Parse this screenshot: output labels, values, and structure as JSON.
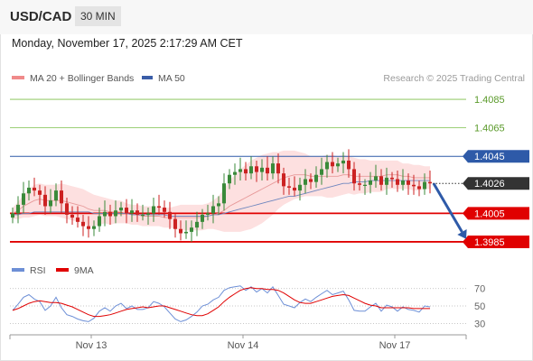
{
  "header": {
    "symbol": "USD/CAD",
    "timeframe": "30 MIN"
  },
  "datetime": "Monday, November 17, 2025 2:17:29 AM CET",
  "legend": {
    "price": [
      {
        "label": "MA 20 + Bollinger Bands",
        "color": "#f08a8a"
      },
      {
        "label": "MA 50",
        "color": "#3b5ea8"
      }
    ],
    "rsi": [
      {
        "label": "RSI",
        "color": "#6d8fd6"
      },
      {
        "label": "9MA",
        "color": "#e00000"
      }
    ]
  },
  "credit": "Research © 2025 Trading Central",
  "colors": {
    "up_candle": "#3a8a3a",
    "down_candle": "#cc2222",
    "band_fill": "#fde0e0",
    "resistance_green": "#7cbf4a",
    "pivot_blue": "#2e5aa8",
    "support_red": "#e00000",
    "arrow": "#2e5aa8",
    "price_tag": "#333333"
  },
  "chart_data": [
    {
      "type": "candlestick",
      "ylim": [
        1.3978,
        1.4092
      ],
      "levels": [
        {
          "value": 1.4085,
          "label": "1.4085",
          "kind": "resistance"
        },
        {
          "value": 1.4065,
          "label": "1.4065",
          "kind": "resistance"
        },
        {
          "value": 1.4045,
          "label": "1.4045",
          "kind": "pivot"
        },
        {
          "value": 1.4005,
          "label": "1.4005",
          "kind": "support"
        },
        {
          "value": 1.3985,
          "label": "1.3985",
          "kind": "support"
        }
      ],
      "last_price": {
        "value": 1.4026,
        "label": "1.4026"
      },
      "x_ticks": [
        {
          "index": 17,
          "label": "Nov 13"
        },
        {
          "index": 45,
          "label": "Nov 14"
        },
        {
          "index": 73,
          "label": "Nov 17"
        }
      ],
      "close": [
        1.4005,
        1.4011,
        1.4019,
        1.4023,
        1.4021,
        1.4018,
        1.401,
        1.4014,
        1.4021,
        1.4012,
        1.4004,
        1.4002,
        1.3999,
        1.3996,
        1.3994,
        1.3996,
        1.4003,
        1.4006,
        1.4003,
        1.4007,
        1.4009,
        1.4005,
        1.4007,
        1.4004,
        1.4004,
        1.4005,
        1.401,
        1.4009,
        1.4006,
        1.4001,
        1.3994,
        1.3991,
        1.3992,
        1.3995,
        1.3999,
        1.4004,
        1.4005,
        1.401,
        1.4012,
        1.4026,
        1.4032,
        1.4034,
        1.4036,
        1.4033,
        1.4038,
        1.4034,
        1.4037,
        1.4033,
        1.404,
        1.4033,
        1.4024,
        1.4023,
        1.4021,
        1.4025,
        1.4029,
        1.4027,
        1.4032,
        1.4036,
        1.4041,
        1.4038,
        1.404,
        1.4042,
        1.4036,
        1.4026,
        1.4025,
        1.4025,
        1.4028,
        1.4031,
        1.4025,
        1.403,
        1.4029,
        1.4025,
        1.4028,
        1.4025,
        1.4024,
        1.4022,
        1.4027,
        1.4026
      ],
      "ma20": [
        1.4005,
        1.4007,
        1.401,
        1.4012,
        1.4014,
        1.4015,
        1.4014,
        1.4014,
        1.4014,
        1.4014,
        1.4013,
        1.4012,
        1.4011,
        1.401,
        1.4008,
        1.4007,
        1.4007,
        1.4007,
        1.4006,
        1.4006,
        1.4006,
        1.4005,
        1.4004,
        1.4004,
        1.4003,
        1.4003,
        1.4003,
        1.4003,
        1.4002,
        1.4002,
        1.4002,
        1.4002,
        1.4002,
        1.4002,
        1.4002,
        1.4002,
        1.4003,
        1.4004,
        1.4005,
        1.4007,
        1.401,
        1.4012,
        1.4014,
        1.4016,
        1.4018,
        1.402,
        1.4022,
        1.4024,
        1.4026,
        1.4028,
        1.403,
        1.4031,
        1.4032,
        1.4032,
        1.4032,
        1.4031,
        1.4031,
        1.4031,
        1.4031,
        1.4031,
        1.4031,
        1.4032,
        1.4032,
        1.4031,
        1.4031,
        1.4031,
        1.4031,
        1.4031,
        1.4031,
        1.4032,
        1.4032,
        1.4032,
        1.4031,
        1.4031,
        1.403,
        1.403,
        1.403,
        1.403
      ],
      "band_width": [
        0.0004,
        0.0006,
        0.0008,
        0.001,
        0.0011,
        0.0011,
        0.0011,
        0.0011,
        0.0011,
        0.0012,
        0.0012,
        0.0012,
        0.0012,
        0.0012,
        0.0012,
        0.0011,
        0.001,
        0.0009,
        0.0009,
        0.0008,
        0.0008,
        0.0007,
        0.0007,
        0.0007,
        0.0007,
        0.0007,
        0.0007,
        0.0007,
        0.0007,
        0.0007,
        0.0008,
        0.0009,
        0.0009,
        0.0009,
        0.0009,
        0.0009,
        0.0009,
        0.001,
        0.0012,
        0.0015,
        0.0018,
        0.002,
        0.0022,
        0.0023,
        0.0024,
        0.0024,
        0.0024,
        0.0023,
        0.0022,
        0.002,
        0.0019,
        0.0018,
        0.0017,
        0.0016,
        0.0015,
        0.0014,
        0.0014,
        0.0014,
        0.0015,
        0.0015,
        0.0014,
        0.0014,
        0.0013,
        0.0013,
        0.0012,
        0.0012,
        0.0011,
        0.0011,
        0.0011,
        0.001,
        0.001,
        0.001,
        0.0009,
        0.0009,
        0.0009,
        0.0009,
        0.0008,
        0.0008
      ],
      "ma50": [
        1.4004,
        1.4004,
        1.4005,
        1.4005,
        1.4006,
        1.4006,
        1.4006,
        1.4006,
        1.4006,
        1.4006,
        1.4006,
        1.4006,
        1.4006,
        1.4006,
        1.4006,
        1.4005,
        1.4005,
        1.4005,
        1.4005,
        1.4005,
        1.4005,
        1.4005,
        1.4004,
        1.4004,
        1.4004,
        1.4004,
        1.4004,
        1.4004,
        1.4004,
        1.4003,
        1.4003,
        1.4003,
        1.4003,
        1.4003,
        1.4003,
        1.4003,
        1.4003,
        1.4004,
        1.4004,
        1.4005,
        1.4006,
        1.4007,
        1.4008,
        1.4009,
        1.401,
        1.4011,
        1.4012,
        1.4013,
        1.4014,
        1.4015,
        1.4016,
        1.4017,
        1.4017,
        1.4018,
        1.4019,
        1.402,
        1.4021,
        1.4022,
        1.4023,
        1.4024,
        1.4025,
        1.4026,
        1.4026,
        1.4027,
        1.4027,
        1.4027,
        1.4028,
        1.4028,
        1.4028,
        1.4028,
        1.4028,
        1.4028,
        1.4028,
        1.4028,
        1.4028,
        1.4028,
        1.4028,
        1.4028
      ],
      "forecast": {
        "from_index": 77,
        "from_value": 1.4026,
        "to_index": 82,
        "to_value": 1.3987
      }
    },
    {
      "type": "line",
      "ylim": [
        20,
        78
      ],
      "y_ticks": [
        70,
        50,
        30
      ],
      "series": [
        {
          "name": "RSI",
          "values": [
            45,
            52,
            60,
            63,
            58,
            55,
            45,
            50,
            60,
            48,
            40,
            38,
            35,
            33,
            32,
            36,
            44,
            48,
            44,
            50,
            53,
            47,
            50,
            46,
            46,
            48,
            55,
            53,
            49,
            42,
            35,
            32,
            34,
            38,
            43,
            50,
            52,
            57,
            60,
            68,
            71,
            72,
            73,
            68,
            72,
            66,
            70,
            65,
            72,
            62,
            52,
            50,
            48,
            54,
            58,
            55,
            60,
            64,
            68,
            63,
            65,
            67,
            57,
            45,
            44,
            44,
            49,
            53,
            44,
            51,
            49,
            44,
            49,
            46,
            45,
            43,
            50,
            49
          ]
        },
        {
          "name": "9MA",
          "values": [
            45,
            47,
            50,
            53,
            55,
            56,
            55,
            54,
            54,
            53,
            51,
            49,
            46,
            43,
            40,
            38,
            38,
            39,
            40,
            42,
            44,
            46,
            47,
            48,
            49,
            48,
            49,
            50,
            50,
            48,
            46,
            44,
            42,
            40,
            39,
            39,
            41,
            45,
            49,
            55,
            60,
            64,
            68,
            70,
            71,
            70,
            70,
            69,
            69,
            68,
            65,
            61,
            57,
            54,
            53,
            53,
            55,
            57,
            59,
            61,
            62,
            63,
            62,
            59,
            56,
            53,
            51,
            50,
            48,
            48,
            48,
            48,
            48,
            48,
            47,
            47,
            47,
            47
          ]
        }
      ]
    }
  ]
}
